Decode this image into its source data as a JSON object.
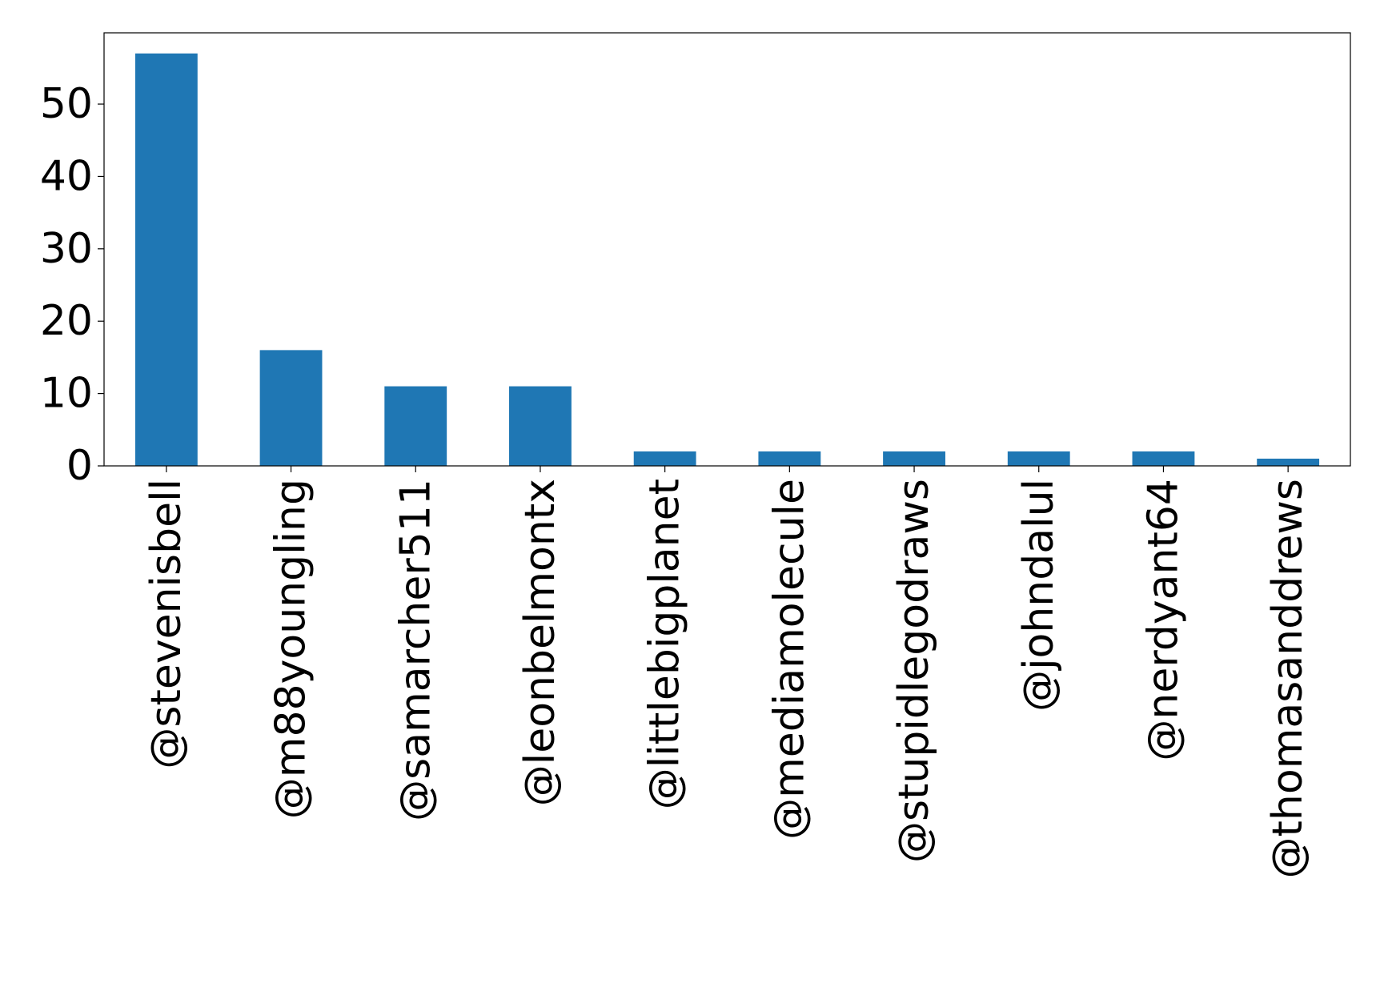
{
  "chart_data": {
    "type": "bar",
    "categories": [
      "@stevenisbell",
      "@m88youngling",
      "@samarcher511",
      "@leonbelmontx",
      "@littlebigplanet",
      "@mediamolecule",
      "@stupidlegodraws",
      "@johndalul",
      "@nerdyant64",
      "@thomasanddrews"
    ],
    "values": [
      57,
      16,
      11,
      11,
      2,
      2,
      2,
      2,
      2,
      1
    ],
    "color": "#1f77b4",
    "ylim": [
      0,
      59.85
    ],
    "yticks": [
      0,
      10,
      20,
      30,
      40,
      50
    ],
    "grid": false
  }
}
